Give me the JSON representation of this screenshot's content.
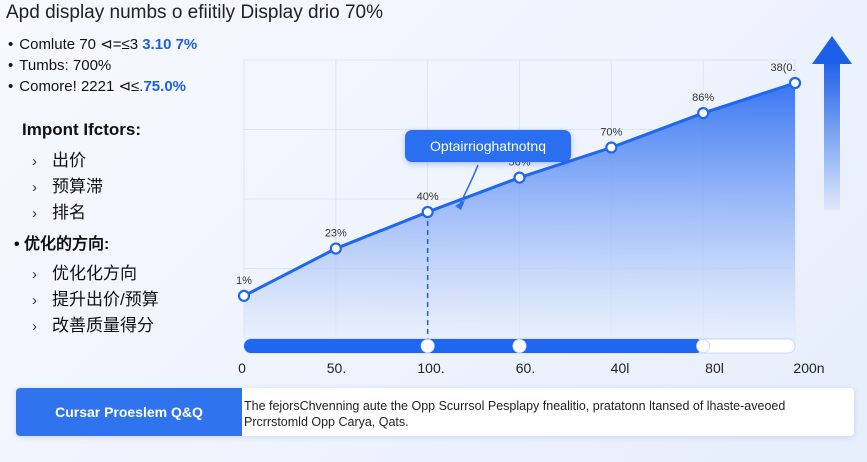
{
  "header": {
    "title": "Apd display numbs o efiitily Display drio 70%"
  },
  "stats": [
    {
      "label": "Comlute 70 ⊲=≤3 ",
      "value": "3.10 7%"
    },
    {
      "label": "Tumbs: 700%",
      "value": ""
    },
    {
      "label": "Comore! 2221 ⊲≤.",
      "value": "75.0%"
    }
  ],
  "factors": {
    "heading": "Impont Ifctors:",
    "items": [
      "出价",
      "预算滞",
      "排名"
    ]
  },
  "optimize": {
    "heading": "优化的方向:",
    "items": [
      "优化化方向",
      "提升出价/预算",
      "改善质量得分"
    ]
  },
  "callout": {
    "text": "Optairrioghatnotnq"
  },
  "footer": {
    "button_label": "Cursar Proeslem Q&Q",
    "text": "The fejorsChvenning aute the Opp Scurrsol Pesplapy fnealitio, pratatonn ltansed of lhaste-aveoed Prcrrstomld Opp Carya, Qats."
  },
  "colors": {
    "accent": "#2a6ff0",
    "line": "#1f66f0",
    "area_top": "#2f6ff2",
    "area_bottom": "#e6eefc"
  },
  "chart_data": {
    "type": "area",
    "x": [
      0,
      50,
      100,
      150,
      200
    ],
    "xticks": [
      "0",
      "50.",
      "100.",
      "60.",
      "40l",
      "80l",
      "200n"
    ],
    "points": [
      {
        "label": "1%",
        "value": 1
      },
      {
        "label": "23%",
        "value": 23
      },
      {
        "label": "40%",
        "value": 40
      },
      {
        "label": "56%",
        "value": 56
      },
      {
        "label": "70%",
        "value": 70
      },
      {
        "label": "86%",
        "value": 86
      },
      {
        "label": "38(0.",
        "value": 100
      }
    ],
    "ylim": [
      0,
      100
    ],
    "slider_knobs": [
      2,
      3,
      5
    ],
    "highlight_index": 2
  }
}
